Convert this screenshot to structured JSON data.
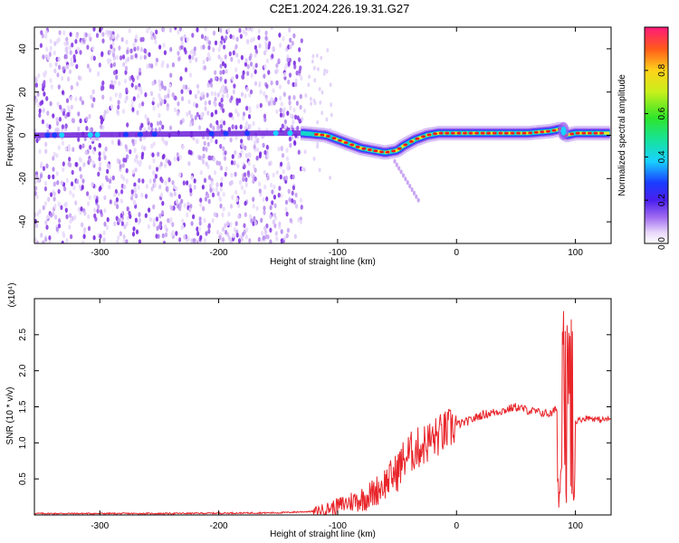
{
  "chart_data": [
    {
      "type": "heatmap",
      "title": "C2E1.2024.226.19.31.G27",
      "xlabel": "Height of straight line (km)",
      "ylabel": "Frequency (Hz)",
      "xlim": [
        -355,
        130
      ],
      "ylim": [
        -50,
        50
      ],
      "x_ticks": [
        -300,
        -200,
        -100,
        0,
        100
      ],
      "y_ticks": [
        -40,
        -20,
        0,
        20,
        40
      ],
      "colorbar": {
        "label": "Normalized spectral amplitude",
        "range": [
          0.0,
          1.0
        ],
        "ticks": [
          "0.0",
          "0.2",
          "0.4",
          "0.6",
          "0.8"
        ]
      },
      "ridge": {
        "description_points_x": [
          -355,
          -150,
          -130,
          -110,
          -100,
          -90,
          -80,
          -70,
          -60,
          -50,
          -45,
          -35,
          -25,
          -15,
          0,
          20,
          40,
          60,
          80,
          88,
          92,
          100,
          130
        ],
        "description_points_y": [
          0,
          1,
          1,
          0,
          -2,
          -4,
          -6,
          -7,
          -8,
          -7,
          -5,
          -2,
          0,
          1,
          1,
          1,
          1,
          1,
          2,
          3,
          0,
          1,
          1
        ]
      }
    },
    {
      "type": "line",
      "title": "",
      "xlabel": "Height of straight line (km)",
      "ylabel": "SNR (10 * v/v)",
      "multiplier_label": "(x10⁴)",
      "xlim": [
        -355,
        130
      ],
      "ylim": [
        0,
        3.0
      ],
      "x_ticks": [
        -300,
        -200,
        -100,
        0,
        100
      ],
      "y_ticks": [
        0.5,
        1.0,
        1.5,
        2.0,
        2.5
      ],
      "series": [
        {
          "color": "#e8252a",
          "x": [
            -355,
            -250,
            -150,
            -120,
            -110,
            -100,
            -90,
            -80,
            -70,
            -60,
            -50,
            -45,
            -40,
            -35,
            -30,
            -25,
            -20,
            -15,
            -10,
            -5,
            0,
            10,
            20,
            30,
            40,
            50,
            60,
            70,
            80,
            85,
            88,
            90,
            92,
            94,
            96,
            98,
            100,
            110,
            120,
            130
          ],
          "y": [
            0.02,
            0.02,
            0.03,
            0.05,
            0.08,
            0.12,
            0.18,
            0.22,
            0.3,
            0.45,
            0.6,
            0.75,
            0.85,
            0.9,
            0.95,
            1.0,
            1.05,
            1.1,
            1.15,
            1.2,
            1.25,
            1.3,
            1.38,
            1.42,
            1.45,
            1.5,
            1.45,
            1.42,
            1.4,
            1.5,
            1.8,
            2.7,
            1.0,
            2.9,
            0.2,
            1.5,
            1.3,
            1.35,
            1.32,
            1.33
          ]
        }
      ]
    }
  ]
}
